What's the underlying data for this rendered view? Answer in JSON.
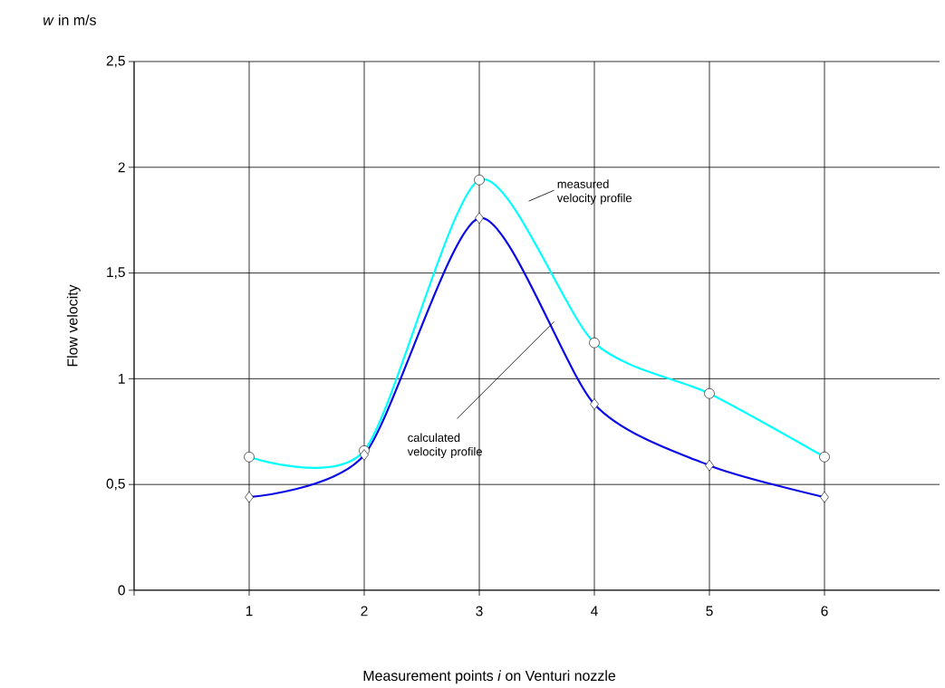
{
  "chart_data": {
    "type": "line",
    "xlabel": "Measurement points *i* on Venturi nozzle",
    "ylabel": "Flow velocity",
    "x": [
      1,
      2,
      3,
      4,
      5,
      6
    ],
    "series": [
      {
        "name": "measured velocity profile",
        "color": "#00ffff",
        "marker": "circle",
        "values": [
          0.63,
          0.66,
          1.94,
          1.17,
          0.93,
          0.63
        ]
      },
      {
        "name": "calculated velocity profile",
        "color": "#0a0ae6",
        "marker": "diamond",
        "values": [
          0.44,
          0.64,
          1.76,
          0.88,
          0.59,
          0.44
        ]
      }
    ],
    "xlim": [
      0,
      7
    ],
    "xticks": [
      {
        "value": 0,
        "label": null
      },
      1,
      2,
      3,
      4,
      5,
      6
    ],
    "ylim": [
      0,
      2.5
    ],
    "yticks": [
      0,
      {
        "value": 0.5,
        "label": "0,5"
      },
      1,
      {
        "value": 1.5,
        "label": "1,5"
      },
      2,
      {
        "value": 2.5,
        "label": "2,5"
      }
    ],
    "grid": true,
    "line_style": "solid",
    "annotations": [
      "*w* in m/s"
    ]
  }
}
